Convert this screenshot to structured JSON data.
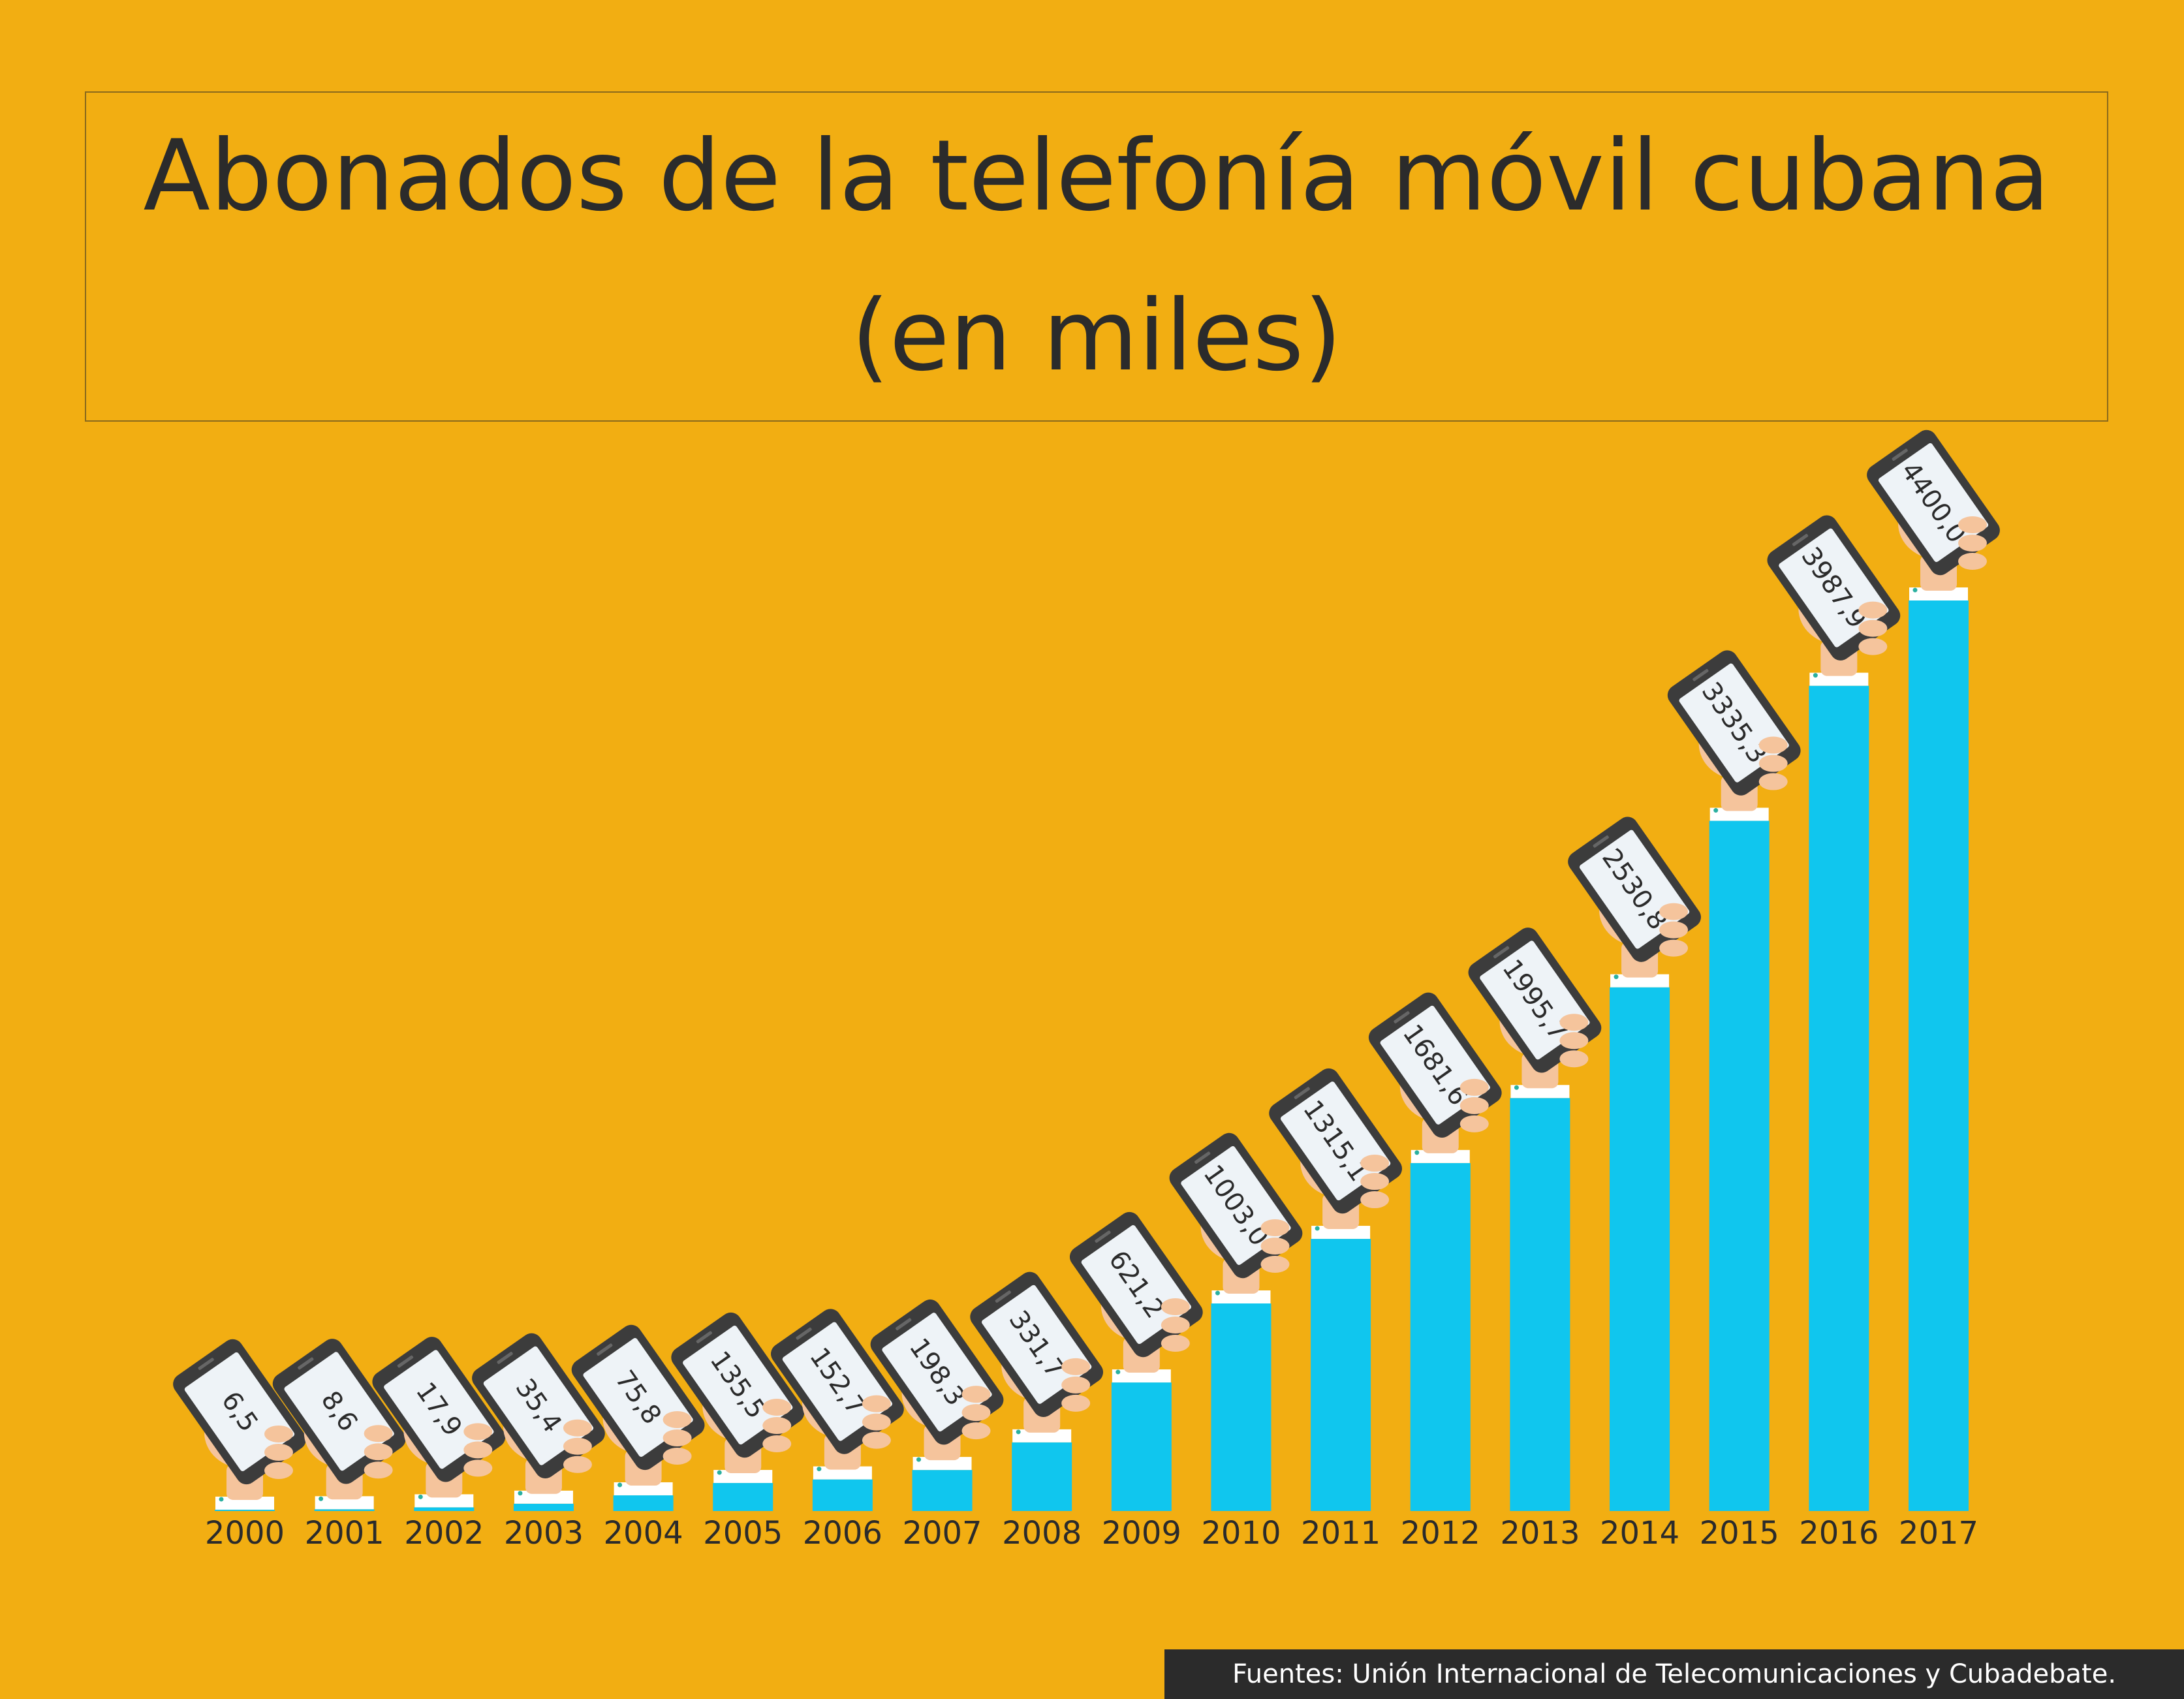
{
  "title": {
    "line1": "Abonados de la telefonía móvil cubana",
    "line2": "(en miles)"
  },
  "source": "Fuentes: Unión Internacional de Telecomunicaciones y Cubadebate.",
  "colors": {
    "background": "#F2AE12",
    "bar": "#10C6EE",
    "text": "#2b2b2b",
    "phone_body": "#3c3c3c",
    "phone_screen": "#eef3f7",
    "hand": "#F5C49C",
    "cuff": "#ffffff"
  },
  "chart_data": {
    "type": "bar",
    "title": "Abonados de la telefonía móvil cubana (en miles)",
    "categories": [
      "2000",
      "2001",
      "2002",
      "2003",
      "2004",
      "2005",
      "2006",
      "2007",
      "2008",
      "2009",
      "2010",
      "2011",
      "2012",
      "2013",
      "2014",
      "2015",
      "2016",
      "2017"
    ],
    "values": [
      6.5,
      8.6,
      17.9,
      35.4,
      75.8,
      135.5,
      152.7,
      198.3,
      331.7,
      621.2,
      1003.0,
      1315.1,
      1681.6,
      1995.7,
      2530.8,
      3335.3,
      3987.9,
      4400.0
    ],
    "value_labels": [
      "6,5",
      "8,6",
      "17,9",
      "35,4",
      "75,8",
      "135,5",
      "152,7",
      "198,3",
      "331,7",
      "621,2",
      "1003,0",
      "1315,1",
      "1681,6",
      "1995,7",
      "2530,8",
      "3335,3",
      "3987,9",
      "4400,0"
    ],
    "xlabel": "",
    "ylabel": "",
    "ylim": [
      0,
      4400
    ],
    "grid": false,
    "legend": "none"
  }
}
